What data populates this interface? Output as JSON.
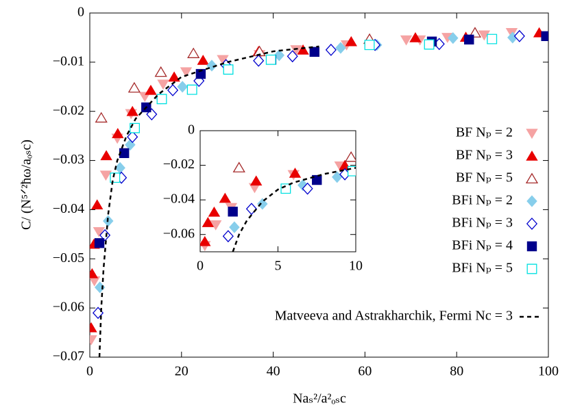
{
  "chart_data": [
    {
      "type": "scatter",
      "x_label": "Naₛ²/a²ₒₛc",
      "y_label": "C/ (N⁵ᐟ²ħω/aₒₛc)",
      "xlim": [
        0,
        100
      ],
      "ylim": [
        -0.07,
        0
      ],
      "xticks": [
        0,
        20,
        40,
        60,
        80,
        100
      ],
      "yticks": [
        {
          "value": -0.07,
          "label": "−0.07"
        },
        {
          "value": -0.06,
          "label": "−0.06"
        },
        {
          "value": -0.05,
          "label": "−0.05"
        },
        {
          "value": -0.04,
          "label": "−0.04"
        },
        {
          "value": -0.03,
          "label": "−0.03"
        },
        {
          "value": -0.02,
          "label": "−0.02"
        },
        {
          "value": -0.01,
          "label": "−0.01"
        },
        0
      ],
      "series": [
        {
          "name": "BF Nₚ = 2",
          "color": "#f5a3a3",
          "marker": "triangle-down",
          "x": [
            0.3,
            1,
            2,
            3.5,
            6,
            9,
            12,
            16,
            21,
            29,
            37,
            45,
            56,
            69,
            72,
            78,
            86,
            92
          ],
          "values": [
            -0.0665,
            -0.0545,
            -0.0445,
            -0.033,
            -0.0255,
            -0.0205,
            -0.017,
            -0.0145,
            -0.012,
            -0.0095,
            -0.0085,
            -0.0075,
            -0.0065,
            -0.0055,
            -0.0055,
            -0.005,
            -0.0045,
            -0.004
          ]
        },
        {
          "name": "BF Nₚ = 3",
          "color": "#e80000",
          "marker": "triangle-up",
          "x": [
            0.3,
            0.5,
            0.9,
            1.6,
            3.6,
            6.1,
            9.3,
            13.3,
            18.4,
            24.7,
            36.8,
            46.5,
            57,
            71,
            82,
            98
          ],
          "values": [
            -0.064,
            -0.053,
            -0.047,
            -0.039,
            -0.029,
            -0.0245,
            -0.02,
            -0.0157,
            -0.013,
            -0.0096,
            -0.0078,
            -0.0075,
            -0.0058,
            -0.005,
            -0.0049,
            -0.004
          ]
        },
        {
          "name": "BF Nₚ = 5",
          "color": "#a52a2a",
          "marker": "triangle-up-open",
          "x": [
            2.5,
            9.7,
            15.5,
            22.6,
            37,
            61,
            84
          ],
          "values": [
            -0.0213,
            -0.0152,
            -0.012,
            -0.0082,
            -0.0078,
            -0.0053,
            -0.004
          ]
        },
        {
          "name": "BFi Nₚ = 2",
          "color": "#87ceeb",
          "marker": "diamond",
          "x": [
            2.2,
            4,
            6.6,
            8.8,
            15.5,
            20.2,
            26.6,
            41.3,
            54.7,
            62.6,
            79.2,
            92.2
          ],
          "values": [
            -0.0558,
            -0.0423,
            -0.0315,
            -0.0268,
            -0.0174,
            -0.015,
            -0.0107,
            -0.0086,
            -0.0071,
            -0.0065,
            -0.0051,
            -0.005
          ]
        },
        {
          "name": "BFi Nₚ = 3",
          "color": "#0000cd",
          "marker": "diamond-open",
          "x": [
            1.8,
            3.3,
            6.9,
            9.3,
            13.5,
            18.1,
            23.8,
            29.7,
            36.8,
            44.2,
            52.6,
            62.2,
            76.2,
            93.7
          ],
          "values": [
            -0.061,
            -0.0452,
            -0.0335,
            -0.0252,
            -0.0206,
            -0.0157,
            -0.0138,
            -0.0106,
            -0.0097,
            -0.0088,
            -0.0075,
            -0.0065,
            -0.0063,
            -0.0047
          ]
        },
        {
          "name": "BFi Nₚ = 4",
          "color": "#00008b",
          "marker": "square",
          "x": [
            2.1,
            7.5,
            12.3,
            24.2,
            39.6,
            49,
            74.6,
            82.7,
            99.5
          ],
          "values": [
            -0.0468,
            -0.0285,
            -0.0192,
            -0.0124,
            -0.0095,
            -0.0079,
            -0.0058,
            -0.0054,
            -0.0047
          ]
        },
        {
          "name": "BFi Nₚ = 5",
          "color": "#00e0e0",
          "marker": "square-open",
          "x": [
            5.5,
            9.8,
            15.7,
            22.3,
            30.2,
            39.5,
            61,
            74,
            87.7
          ],
          "values": [
            -0.0335,
            -0.0234,
            -0.0175,
            -0.0156,
            -0.0115,
            -0.0095,
            -0.0065,
            -0.0064,
            -0.0053
          ]
        },
        {
          "name": "Matveeva and Astrakharchik, Fermi Nc = 3",
          "color": "#000000",
          "marker": "dashed-line",
          "x": [
            2.1,
            2.5,
            3,
            4,
            5,
            6,
            8,
            10,
            15,
            20,
            30,
            40,
            50
          ],
          "values": [
            -0.07,
            -0.06,
            -0.052,
            -0.041,
            -0.034,
            -0.03,
            -0.025,
            -0.0215,
            -0.0165,
            -0.013,
            -0.01,
            -0.0078,
            -0.0068
          ]
        }
      ]
    },
    {
      "type": "inset",
      "xlim": [
        0,
        10
      ],
      "ylim": [
        -0.07,
        0
      ],
      "xticks": [
        0,
        5,
        10
      ],
      "yticks": [
        {
          "value": -0.06,
          "label": "−0.06"
        },
        {
          "value": -0.04,
          "label": "−0.04"
        },
        {
          "value": -0.02,
          "label": "−0.02"
        },
        0
      ]
    }
  ]
}
